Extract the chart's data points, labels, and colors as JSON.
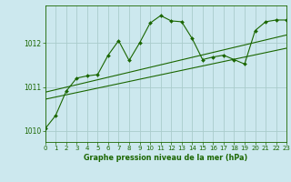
{
  "title": "Graphe pression niveau de la mer (hPa)",
  "bg_color": "#cce8ee",
  "grid_color": "#aacccc",
  "line_color": "#1a6600",
  "text_color": "#1a6600",
  "xlim": [
    0,
    23
  ],
  "ylim": [
    1009.75,
    1012.85
  ],
  "yticks": [
    1010,
    1011,
    1012
  ],
  "xticks": [
    0,
    1,
    2,
    3,
    4,
    5,
    6,
    7,
    8,
    9,
    10,
    11,
    12,
    13,
    14,
    15,
    16,
    17,
    18,
    19,
    20,
    21,
    22,
    23
  ],
  "main_series": [
    [
      0,
      1010.05
    ],
    [
      1,
      1010.35
    ],
    [
      2,
      1010.9
    ],
    [
      3,
      1011.2
    ],
    [
      4,
      1011.25
    ],
    [
      5,
      1011.28
    ],
    [
      6,
      1011.72
    ],
    [
      7,
      1012.05
    ],
    [
      8,
      1011.6
    ],
    [
      9,
      1012.0
    ],
    [
      10,
      1012.45
    ],
    [
      11,
      1012.62
    ],
    [
      12,
      1012.5
    ],
    [
      13,
      1012.48
    ],
    [
      14,
      1012.1
    ],
    [
      15,
      1011.62
    ],
    [
      16,
      1011.68
    ],
    [
      17,
      1011.72
    ],
    [
      18,
      1011.62
    ],
    [
      19,
      1011.52
    ],
    [
      20,
      1012.28
    ],
    [
      21,
      1012.48
    ],
    [
      22,
      1012.52
    ],
    [
      23,
      1012.52
    ]
  ],
  "line1_series": [
    [
      0,
      1010.72
    ],
    [
      23,
      1011.88
    ]
  ],
  "line2_series": [
    [
      0,
      1010.88
    ],
    [
      23,
      1012.18
    ]
  ]
}
